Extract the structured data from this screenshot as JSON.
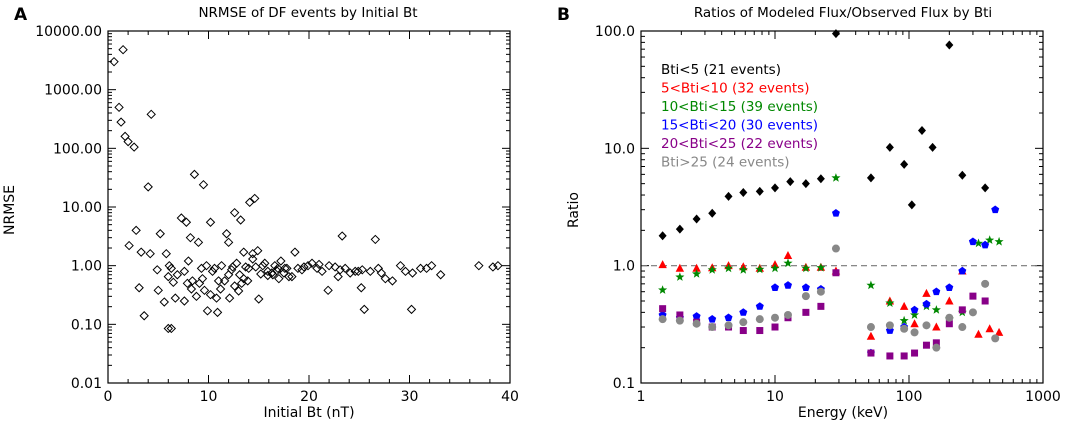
{
  "chart_data": [
    {
      "type": "scatter",
      "panel_label": "A",
      "title": "NRMSE of DF events by Initial Bt",
      "xlabel": "Initial Bt (nT)",
      "ylabel": "NRMSE",
      "xscale": "linear",
      "yscale": "log",
      "xlim": [
        0,
        40
      ],
      "ylim": [
        0.01,
        10000
      ],
      "x_ticks": [
        0,
        10,
        20,
        30,
        40
      ],
      "x_tick_labels": [
        "0",
        "10",
        "20",
        "30",
        "40"
      ],
      "y_ticks": [
        0.01,
        0.1,
        1,
        10,
        100,
        1000,
        10000
      ],
      "y_tick_labels": [
        "0.01",
        "0.10",
        "1.00",
        "10.00",
        "100.00",
        "1000.00",
        "10000.00"
      ],
      "marker": "open-diamond",
      "points": [
        [
          0.6,
          3000
        ],
        [
          1.1,
          500
        ],
        [
          1.5,
          4800
        ],
        [
          1.3,
          280
        ],
        [
          1.7,
          160
        ],
        [
          2.0,
          130
        ],
        [
          2.6,
          105
        ],
        [
          4.3,
          380
        ],
        [
          4.0,
          22
        ],
        [
          2.1,
          2.2
        ],
        [
          2.8,
          4
        ],
        [
          3.3,
          1.7
        ],
        [
          4.2,
          1.6
        ],
        [
          4.9,
          0.85
        ],
        [
          5.2,
          3.5
        ],
        [
          5.8,
          1.6
        ],
        [
          6.1,
          1.0
        ],
        [
          6.3,
          0.9
        ],
        [
          3.1,
          0.42
        ],
        [
          5.0,
          0.38
        ],
        [
          6.0,
          0.65
        ],
        [
          6.5,
          0.52
        ],
        [
          6.9,
          0.7
        ],
        [
          3.6,
          0.14
        ],
        [
          5.6,
          0.24
        ],
        [
          6.7,
          0.28
        ],
        [
          6.0,
          0.085
        ],
        [
          6.3,
          0.085
        ],
        [
          7.3,
          6.5
        ],
        [
          7.8,
          5.5
        ],
        [
          8.0,
          1.2
        ],
        [
          8.6,
          36
        ],
        [
          8.2,
          3.0
        ],
        [
          9.0,
          2.5
        ],
        [
          9.5,
          24
        ],
        [
          10.2,
          5.5
        ],
        [
          9.3,
          0.9
        ],
        [
          9.8,
          1.0
        ],
        [
          10.6,
          0.9
        ],
        [
          7.6,
          0.8
        ],
        [
          8.4,
          0.55
        ],
        [
          9.1,
          0.5
        ],
        [
          9.6,
          0.38
        ],
        [
          10.2,
          0.32
        ],
        [
          10.8,
          0.28
        ],
        [
          11.2,
          0.4
        ],
        [
          11.6,
          0.55
        ],
        [
          12.0,
          0.7
        ],
        [
          12.4,
          0.95
        ],
        [
          12.8,
          1.1
        ],
        [
          13.1,
          0.7
        ],
        [
          13.5,
          0.6
        ],
        [
          14.0,
          0.9
        ],
        [
          14.4,
          1.3
        ],
        [
          14.9,
          1.8
        ],
        [
          15.4,
          1.0
        ],
        [
          15.9,
          0.8
        ],
        [
          16.4,
          0.7
        ],
        [
          16.9,
          0.9
        ],
        [
          17.5,
          0.75
        ],
        [
          18.0,
          0.65
        ],
        [
          7.6,
          0.25
        ],
        [
          8.8,
          0.3
        ],
        [
          9.9,
          0.17
        ],
        [
          10.9,
          0.16
        ],
        [
          12.1,
          0.28
        ],
        [
          13.0,
          0.37
        ],
        [
          15.0,
          0.27
        ],
        [
          13.7,
          0.95
        ],
        [
          12.0,
          2.5
        ],
        [
          12.6,
          8
        ],
        [
          13.2,
          6
        ],
        [
          11.8,
          3.5
        ],
        [
          14.1,
          12
        ],
        [
          14.6,
          14
        ],
        [
          13.5,
          1.7
        ],
        [
          14.4,
          1.6
        ],
        [
          15.6,
          1.1
        ],
        [
          16.6,
          1.0
        ],
        [
          17.2,
          1.2
        ],
        [
          17.6,
          0.9
        ],
        [
          18.6,
          1.7
        ],
        [
          18.3,
          0.65
        ],
        [
          19.3,
          0.85
        ],
        [
          19.9,
          1.0
        ],
        [
          20.3,
          1.1
        ],
        [
          20.8,
          0.9
        ],
        [
          21.3,
          0.8
        ],
        [
          22.0,
          1.0
        ],
        [
          22.6,
          0.95
        ],
        [
          23.1,
          0.85
        ],
        [
          23.6,
          0.9
        ],
        [
          24.1,
          0.75
        ],
        [
          24.6,
          0.8
        ],
        [
          25.3,
          0.85
        ],
        [
          26.1,
          0.8
        ],
        [
          26.9,
          0.9
        ],
        [
          27.6,
          0.6
        ],
        [
          28.3,
          0.55
        ],
        [
          29.1,
          1.0
        ],
        [
          29.6,
          0.8
        ],
        [
          30.3,
          0.75
        ],
        [
          31.1,
          0.9
        ],
        [
          32.2,
          1.0
        ],
        [
          33.1,
          0.7
        ],
        [
          23.3,
          3.2
        ],
        [
          26.6,
          2.8
        ],
        [
          21.9,
          0.38
        ],
        [
          25.2,
          0.42
        ],
        [
          25.5,
          0.18
        ],
        [
          30.2,
          0.18
        ],
        [
          36.9,
          1.0
        ],
        [
          38.3,
          0.95
        ],
        [
          38.8,
          1.0
        ],
        [
          15.9,
          0.68
        ],
        [
          16.3,
          0.75
        ],
        [
          17.8,
          0.9
        ],
        [
          11.3,
          1.0
        ],
        [
          10.4,
          0.8
        ],
        [
          12.6,
          0.45
        ],
        [
          13.9,
          0.55
        ],
        [
          15.2,
          0.72
        ],
        [
          17.0,
          0.6
        ],
        [
          18.9,
          0.9
        ],
        [
          19.5,
          0.95
        ],
        [
          21.0,
          1.05
        ],
        [
          22.9,
          0.65
        ],
        [
          24.9,
          0.8
        ],
        [
          27.2,
          0.75
        ],
        [
          31.7,
          0.9
        ],
        [
          8.3,
          0.4
        ],
        [
          7.9,
          0.5
        ],
        [
          11.0,
          0.55
        ],
        [
          12.3,
          0.85
        ],
        [
          14.7,
          0.95
        ],
        [
          16.8,
          0.82
        ],
        [
          13.3,
          0.5
        ],
        [
          9.4,
          0.6
        ]
      ]
    },
    {
      "type": "scatter",
      "panel_label": "B",
      "title": "Ratios of Modeled Flux/Observed Flux by Bti",
      "xlabel": "Energy (keV)",
      "ylabel": "Ratio",
      "xscale": "log",
      "yscale": "log",
      "xlim": [
        1,
        1000
      ],
      "ylim": [
        0.1,
        100
      ],
      "x_ticks": [
        1,
        10,
        100,
        1000
      ],
      "x_tick_labels": [
        "1",
        "10",
        "100",
        "1000"
      ],
      "y_ticks": [
        0.1,
        1,
        10,
        100
      ],
      "y_tick_labels": [
        "0.1",
        "1.0",
        "10.0",
        "100.0"
      ],
      "reference_line": 1.0,
      "legend_position": "top-left",
      "series": [
        {
          "name": "Bti<5 (21 events)",
          "color": "#000000",
          "marker": "diamond",
          "x": [
            1.45,
            1.95,
            2.6,
            3.4,
            4.5,
            5.8,
            7.7,
            10.0,
            13.0,
            17.0,
            22.0,
            28.5,
            52,
            72,
            92,
            105,
            125,
            150,
            200,
            250,
            370
          ],
          "y": [
            1.8,
            2.05,
            2.5,
            2.8,
            3.9,
            4.2,
            4.3,
            4.6,
            5.2,
            5.0,
            5.5,
            95,
            5.6,
            10.2,
            7.3,
            3.3,
            14.2,
            10.2,
            76,
            5.9,
            4.6
          ]
        },
        {
          "name": "5<Bti<10 (32 events)",
          "color": "#ff0000",
          "marker": "triangle",
          "x": [
            1.45,
            1.95,
            2.6,
            3.4,
            4.5,
            5.8,
            7.7,
            10.0,
            12.5,
            17.0,
            22.0,
            28.5,
            52,
            72,
            92,
            110,
            135,
            160,
            200,
            250,
            330,
            400,
            470
          ],
          "y": [
            1.02,
            0.95,
            0.95,
            0.96,
            1.0,
            0.98,
            0.95,
            1.02,
            1.22,
            0.97,
            0.97,
            0.9,
            0.25,
            0.5,
            0.45,
            0.32,
            0.58,
            0.3,
            0.5,
            0.9,
            0.26,
            0.29,
            0.27
          ]
        },
        {
          "name": "10<Bti<15 (39 events)",
          "color": "#008800",
          "marker": "star",
          "x": [
            1.45,
            1.95,
            2.6,
            3.4,
            4.5,
            5.8,
            7.7,
            10.0,
            12.5,
            17.0,
            22.0,
            28.5,
            52,
            72,
            92,
            110,
            135,
            160,
            200,
            250,
            330,
            400,
            470
          ],
          "y": [
            0.62,
            0.8,
            0.85,
            0.92,
            0.95,
            0.92,
            0.93,
            0.95,
            1.05,
            0.95,
            0.96,
            5.6,
            0.68,
            0.48,
            0.34,
            0.38,
            0.45,
            0.42,
            0.35,
            0.4,
            1.55,
            1.65,
            1.6
          ]
        },
        {
          "name": "15<Bti<20 (30 events)",
          "color": "#0000ff",
          "marker": "pentagon",
          "x": [
            1.45,
            1.95,
            2.6,
            3.4,
            4.5,
            5.8,
            7.7,
            10.0,
            12.5,
            17.0,
            22.0,
            28.5,
            52,
            72,
            92,
            110,
            135,
            160,
            200,
            250,
            300,
            370,
            440
          ],
          "y": [
            0.38,
            0.36,
            0.37,
            0.35,
            0.36,
            0.4,
            0.45,
            0.65,
            0.68,
            0.65,
            0.63,
            2.8,
            0.18,
            0.28,
            0.3,
            0.42,
            0.47,
            0.6,
            0.65,
            0.9,
            1.6,
            1.5,
            3.0
          ]
        },
        {
          "name": "20<Bti<25 (22 events)",
          "color": "#880088",
          "marker": "square",
          "x": [
            1.45,
            1.95,
            2.6,
            3.4,
            4.5,
            5.8,
            7.7,
            10.0,
            12.5,
            17.0,
            22.0,
            28.5,
            52,
            72,
            92,
            110,
            135,
            160,
            200,
            250,
            300,
            370
          ],
          "y": [
            0.43,
            0.38,
            0.33,
            0.3,
            0.3,
            0.28,
            0.28,
            0.3,
            0.36,
            0.4,
            0.45,
            0.87,
            0.18,
            0.17,
            0.17,
            0.18,
            0.21,
            0.22,
            0.32,
            0.42,
            0.55,
            0.5
          ]
        },
        {
          "name": "Bti>25 (24 events)",
          "color": "#888888",
          "marker": "circle",
          "x": [
            1.45,
            1.95,
            2.6,
            3.4,
            4.5,
            5.8,
            7.7,
            10.0,
            12.5,
            17.0,
            22.0,
            28.5,
            52,
            72,
            92,
            110,
            135,
            160,
            200,
            250,
            300,
            370,
            440
          ],
          "y": [
            0.35,
            0.34,
            0.32,
            0.3,
            0.31,
            0.33,
            0.35,
            0.36,
            0.38,
            0.55,
            0.6,
            1.4,
            0.3,
            0.31,
            0.29,
            0.27,
            0.31,
            0.2,
            0.36,
            0.3,
            0.4,
            0.7,
            0.24
          ]
        }
      ]
    }
  ]
}
